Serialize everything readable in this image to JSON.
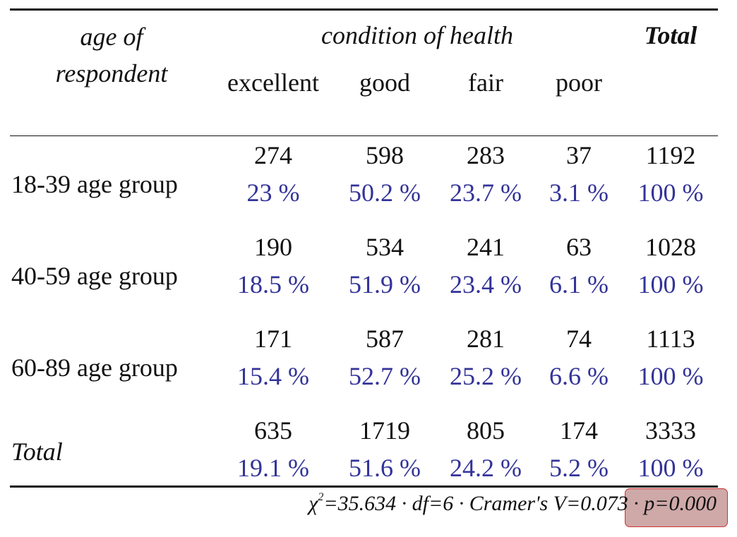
{
  "header": {
    "row_var_line1": "age of",
    "row_var_line2": "respondent",
    "col_var": "condition of health",
    "total": "Total",
    "categories": [
      "excellent",
      "good",
      "fair",
      "poor"
    ]
  },
  "rows": [
    {
      "label": "18-39 age group",
      "counts": [
        "274",
        "598",
        "283",
        "37",
        "1192"
      ],
      "percents": [
        "23 %",
        "50.2 %",
        "23.7 %",
        "3.1 %",
        "100 %"
      ]
    },
    {
      "label": "40-59 age group",
      "counts": [
        "190",
        "534",
        "241",
        "63",
        "1028"
      ],
      "percents": [
        "18.5 %",
        "51.9 %",
        "23.4 %",
        "6.1 %",
        "100 %"
      ]
    },
    {
      "label": "60-89 age group",
      "counts": [
        "171",
        "587",
        "281",
        "74",
        "1113"
      ],
      "percents": [
        "15.4 %",
        "52.7 %",
        "25.2 %",
        "6.6 %",
        "100 %"
      ]
    },
    {
      "label": "Total",
      "counts": [
        "635",
        "1719",
        "805",
        "174",
        "3333"
      ],
      "percents": [
        "19.1 %",
        "51.6 %",
        "24.2 %",
        "5.2 %",
        "100 %"
      ]
    }
  ],
  "footer": {
    "chi_symbol": "χ",
    "chi_superscript": "2",
    "chi_rest": "=35.634 · df=6 · Cramer's V=0.073 · ",
    "p_value": "p=0.000"
  },
  "colors": {
    "percent_text": "#333399",
    "highlight_fill": "#cfa8a8",
    "highlight_border": "#cc3333"
  }
}
